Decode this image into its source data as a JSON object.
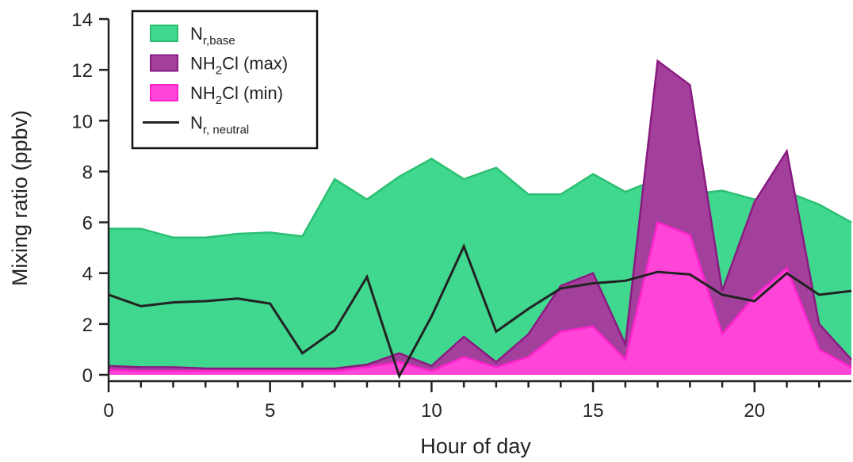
{
  "chart_data": {
    "type": "area",
    "x_label": "Hour of day",
    "y_label": "Mixing ratio (ppbv)",
    "x": [
      0,
      1,
      2,
      3,
      4,
      5,
      6,
      7,
      8,
      9,
      10,
      11,
      12,
      13,
      14,
      15,
      16,
      17,
      18,
      19,
      20,
      21,
      22,
      23
    ],
    "series": [
      {
        "name": [
          {
            "text": "N"
          },
          {
            "text": "r,base",
            "sub": true
          }
        ],
        "kind": "area",
        "color": "#40d78f",
        "edge": "#2cbf74",
        "values": [
          5.75,
          5.75,
          5.4,
          5.4,
          5.55,
          5.6,
          5.45,
          7.7,
          6.9,
          7.8,
          8.5,
          7.7,
          8.15,
          7.1,
          7.1,
          7.9,
          7.2,
          7.7,
          7.1,
          7.25,
          6.9,
          7.2,
          6.7,
          6.0
        ]
      },
      {
        "name": [
          {
            "text": "NH"
          },
          {
            "text": "2",
            "sub": true
          },
          {
            "text": "Cl (max)"
          }
        ],
        "kind": "area",
        "color": "#a3409c",
        "edge": "#8a1a80",
        "values": [
          0.35,
          0.3,
          0.3,
          0.25,
          0.25,
          0.25,
          0.25,
          0.25,
          0.4,
          0.85,
          0.35,
          1.5,
          0.5,
          1.6,
          3.5,
          4.0,
          1.2,
          12.35,
          11.4,
          3.3,
          6.8,
          8.8,
          2.0,
          0.6
        ]
      },
      {
        "name": [
          {
            "text": "NH"
          },
          {
            "text": "2",
            "sub": true
          },
          {
            "text": "Cl (min)"
          }
        ],
        "kind": "area",
        "color": "#ff44d8",
        "edge": "#ff22cc",
        "values": [
          0.2,
          0.15,
          0.15,
          0.15,
          0.15,
          0.15,
          0.15,
          0.15,
          0.3,
          0.5,
          0.15,
          0.7,
          0.3,
          0.7,
          1.7,
          1.9,
          0.6,
          6.0,
          5.5,
          1.6,
          3.1,
          4.2,
          1.0,
          0.3
        ]
      },
      {
        "name": [
          {
            "text": "N"
          },
          {
            "text": "r, neutral",
            "sub": true
          }
        ],
        "kind": "line",
        "color": "#222222",
        "values": [
          3.15,
          2.7,
          2.85,
          2.9,
          3.0,
          2.8,
          0.85,
          1.75,
          3.85,
          -0.05,
          2.3,
          5.05,
          1.7,
          2.6,
          3.4,
          3.6,
          3.7,
          4.05,
          3.95,
          3.15,
          2.9,
          4.0,
          3.15,
          3.3
        ]
      }
    ],
    "xlim": [
      0,
      23
    ],
    "xticks": [
      0,
      5,
      10,
      15,
      20
    ],
    "xminorticks": [
      1,
      2,
      3,
      4,
      6,
      7,
      8,
      9,
      11,
      12,
      13,
      14,
      16,
      17,
      18,
      19,
      21,
      22
    ],
    "ylim": [
      -0.25,
      14
    ],
    "yticks": [
      0,
      2,
      4,
      6,
      8,
      10,
      12,
      14
    ],
    "legend": "upper-left"
  }
}
